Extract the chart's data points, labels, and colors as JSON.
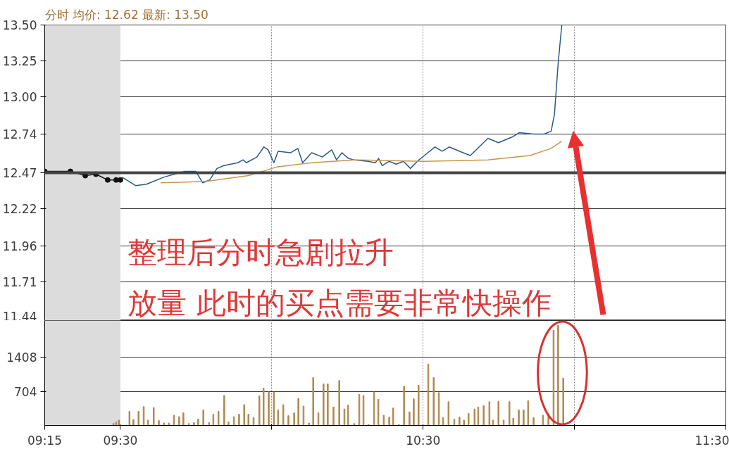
{
  "chart_data": [
    {
      "type": "line",
      "title": "分时 均价: 12.62 最新: 13.50",
      "annotations": [
        "整理后分时急剧拉升",
        "放量  此时的买点需要非常快操作"
      ],
      "series": [
        {
          "color": "#111111",
          "marker": "circle",
          "x": [
            9.25,
            9.335,
            9.384,
            9.419,
            9.458,
            9.486,
            9.5
          ],
          "values": [
            12.48,
            12.48,
            12.45,
            12.46,
            12.42,
            12.42,
            12.42
          ]
        },
        {
          "color": "#2a5a8a",
          "x": [
            9.505,
            9.551,
            9.586,
            9.644,
            9.714,
            9.749,
            9.772,
            9.795,
            9.819,
            9.842,
            9.888,
            9.905,
            9.916,
            9.951,
            9.974,
            9.988,
            10.007,
            10.021,
            10.063,
            10.086,
            10.102,
            10.132,
            10.167,
            10.198,
            10.214,
            10.232,
            10.253,
            10.272,
            10.318,
            10.342,
            10.353,
            10.365,
            10.388,
            10.411,
            10.435,
            10.458,
            10.481,
            10.504,
            10.539,
            10.563,
            10.586,
            10.632,
            10.656,
            10.69,
            10.714,
            10.749,
            10.795,
            10.818,
            10.865,
            10.9,
            10.923,
            10.934,
            10.946,
            10.958
          ],
          "values": [
            12.44,
            12.38,
            12.39,
            12.44,
            12.48,
            12.48,
            12.4,
            12.42,
            12.5,
            12.52,
            12.54,
            12.56,
            12.54,
            12.58,
            12.65,
            12.63,
            12.54,
            12.62,
            12.61,
            12.64,
            12.54,
            12.61,
            12.58,
            12.63,
            12.56,
            12.61,
            12.57,
            12.56,
            12.55,
            12.54,
            12.57,
            12.52,
            12.55,
            12.53,
            12.55,
            12.5,
            12.55,
            12.59,
            12.65,
            12.62,
            12.65,
            12.61,
            12.59,
            12.66,
            12.71,
            12.68,
            12.72,
            12.75,
            12.74,
            12.74,
            12.76,
            12.88,
            13.23,
            13.5
          ]
        },
        {
          "color": "#c8964a",
          "x": [
            9.633,
            9.784,
            9.923,
            10.016,
            10.132,
            10.272,
            10.504,
            10.714,
            10.853,
            10.923,
            10.958
          ],
          "values": [
            12.4,
            12.41,
            12.45,
            12.51,
            12.54,
            12.56,
            12.55,
            12.56,
            12.59,
            12.64,
            12.69
          ]
        }
      ],
      "xlim": [
        9.25,
        11.5
      ],
      "xticks": [
        9.25,
        9.5,
        10,
        10.5,
        11,
        11.5
      ],
      "ylim": [
        11.44,
        13.5
      ],
      "yticks": [
        {
          "value": 13.5,
          "label": "13.50"
        },
        13.25,
        {
          "value": 13.0,
          "label": "13.00"
        },
        12.74,
        12.47,
        12.22,
        11.96,
        11.71,
        11.44
      ],
      "ref_lines": [
        {
          "axis": "y",
          "value": 12.47,
          "color": "#444444"
        }
      ],
      "bands": [
        {
          "axis": "x",
          "from": 9.25,
          "to": 9.5,
          "color": "#dcdcdc"
        }
      ],
      "grid": true,
      "tick_labels": "y"
    },
    {
      "type": "bar",
      "color": "#b08850",
      "x": [
        9.477,
        9.486,
        9.495,
        9.53,
        9.543,
        9.56,
        9.577,
        9.591,
        9.61,
        9.627,
        9.644,
        9.66,
        9.677,
        9.694,
        9.708,
        9.726,
        9.743,
        9.757,
        9.774,
        9.793,
        9.807,
        9.824,
        9.843,
        9.857,
        9.875,
        9.892,
        9.909,
        9.923,
        9.94,
        9.959,
        9.973,
        9.99,
        10.007,
        10.021,
        10.038,
        10.055,
        10.074,
        10.088,
        10.105,
        10.123,
        10.137,
        10.154,
        10.171,
        10.185,
        10.204,
        10.223,
        10.24,
        10.252,
        10.272,
        10.289,
        10.303,
        10.32,
        10.338,
        10.352,
        10.37,
        10.388,
        10.401,
        10.42,
        10.437,
        10.455,
        10.469,
        10.485,
        10.517,
        10.535,
        10.552,
        10.566,
        10.584,
        10.603,
        10.62,
        10.635,
        10.65,
        10.67,
        10.682,
        10.7,
        10.719,
        10.731,
        10.749,
        10.766,
        10.785,
        10.798,
        10.816,
        10.832,
        10.847,
        10.865,
        10.896,
        10.914,
        10.931,
        10.946,
        10.963
      ],
      "values": [
        40,
        70,
        110,
        290,
        120,
        290,
        390,
        110,
        370,
        100,
        50,
        50,
        210,
        180,
        260,
        40,
        60,
        130,
        320,
        60,
        230,
        290,
        620,
        70,
        180,
        230,
        430,
        230,
        160,
        610,
        770,
        690,
        690,
        320,
        430,
        200,
        260,
        560,
        400,
        50,
        990,
        260,
        860,
        860,
        380,
        930,
        340,
        420,
        40,
        640,
        620,
        20,
        690,
        540,
        210,
        170,
        360,
        20,
        810,
        280,
        550,
        830,
        1270,
        990,
        680,
        160,
        490,
        130,
        170,
        110,
        250,
        340,
        380,
        410,
        490,
        110,
        500,
        110,
        490,
        150,
        320,
        320,
        510,
        160,
        210,
        240,
        1970,
        2070,
        980
      ],
      "xlim": [
        9.25,
        11.5
      ],
      "xticks": [
        {
          "value": 9.25,
          "label": "09:15"
        },
        {
          "value": 9.5,
          "label": "09:30"
        },
        {
          "value": 10,
          "label": null
        },
        {
          "value": 10.5,
          "label": "10:30"
        },
        {
          "value": 11,
          "label": null
        },
        {
          "value": 11.5,
          "label": "11:30"
        }
      ],
      "ylim": [
        0,
        2170
      ],
      "yticks": [
        704,
        1408
      ],
      "bands": [
        {
          "axis": "x",
          "from": 9.25,
          "to": 9.5,
          "color": "#dcdcdc"
        }
      ],
      "grid": true
    }
  ]
}
